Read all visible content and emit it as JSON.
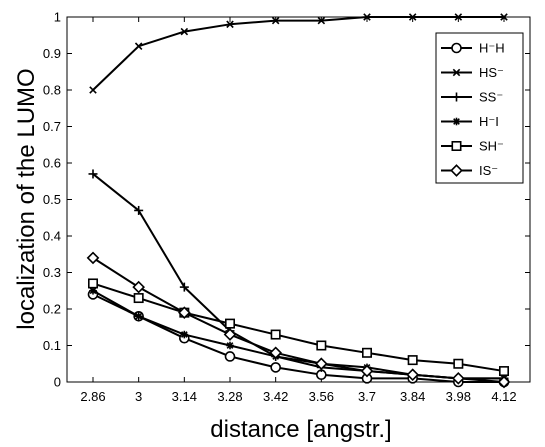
{
  "chart_data": {
    "type": "line",
    "title": "",
    "xlabel": "distance [angstr.]",
    "ylabel": "localization of the LUMO",
    "categories": [
      "2.86",
      "3",
      "3.14",
      "3.28",
      "3.42",
      "3.56",
      "3.7",
      "3.84",
      "3.98",
      "4.12"
    ],
    "y_ticks": [
      "0",
      "0.1",
      "0.2",
      "0.3",
      "0.4",
      "0.5",
      "0.6",
      "0.7",
      "0.8",
      "0.9",
      "1"
    ],
    "ylim": [
      0,
      1
    ],
    "grid": false,
    "legend_position": "top-right",
    "series": [
      {
        "name": "H⁻H",
        "marker": "circle",
        "values": [
          0.24,
          0.18,
          0.12,
          0.07,
          0.04,
          0.02,
          0.01,
          0.01,
          0.0,
          0.0
        ]
      },
      {
        "name": "HS⁻",
        "marker": "x",
        "values": [
          0.8,
          0.92,
          0.96,
          0.98,
          0.99,
          0.99,
          1.0,
          1.0,
          1.0,
          1.0
        ]
      },
      {
        "name": "SS⁻",
        "marker": "plus",
        "values": [
          0.57,
          0.47,
          0.26,
          0.14,
          0.07,
          0.04,
          0.03,
          0.02,
          0.01,
          0.01
        ]
      },
      {
        "name": "H⁻I",
        "marker": "star",
        "values": [
          0.25,
          0.18,
          0.13,
          0.1,
          0.07,
          0.05,
          0.04,
          0.02,
          0.01,
          0.01
        ]
      },
      {
        "name": "SH⁻",
        "marker": "square",
        "values": [
          0.27,
          0.23,
          0.19,
          0.16,
          0.13,
          0.1,
          0.08,
          0.06,
          0.05,
          0.03
        ]
      },
      {
        "name": "IS⁻",
        "marker": "diamond",
        "values": [
          0.34,
          0.26,
          0.19,
          0.13,
          0.08,
          0.05,
          0.03,
          0.02,
          0.01,
          0.0
        ]
      }
    ]
  }
}
